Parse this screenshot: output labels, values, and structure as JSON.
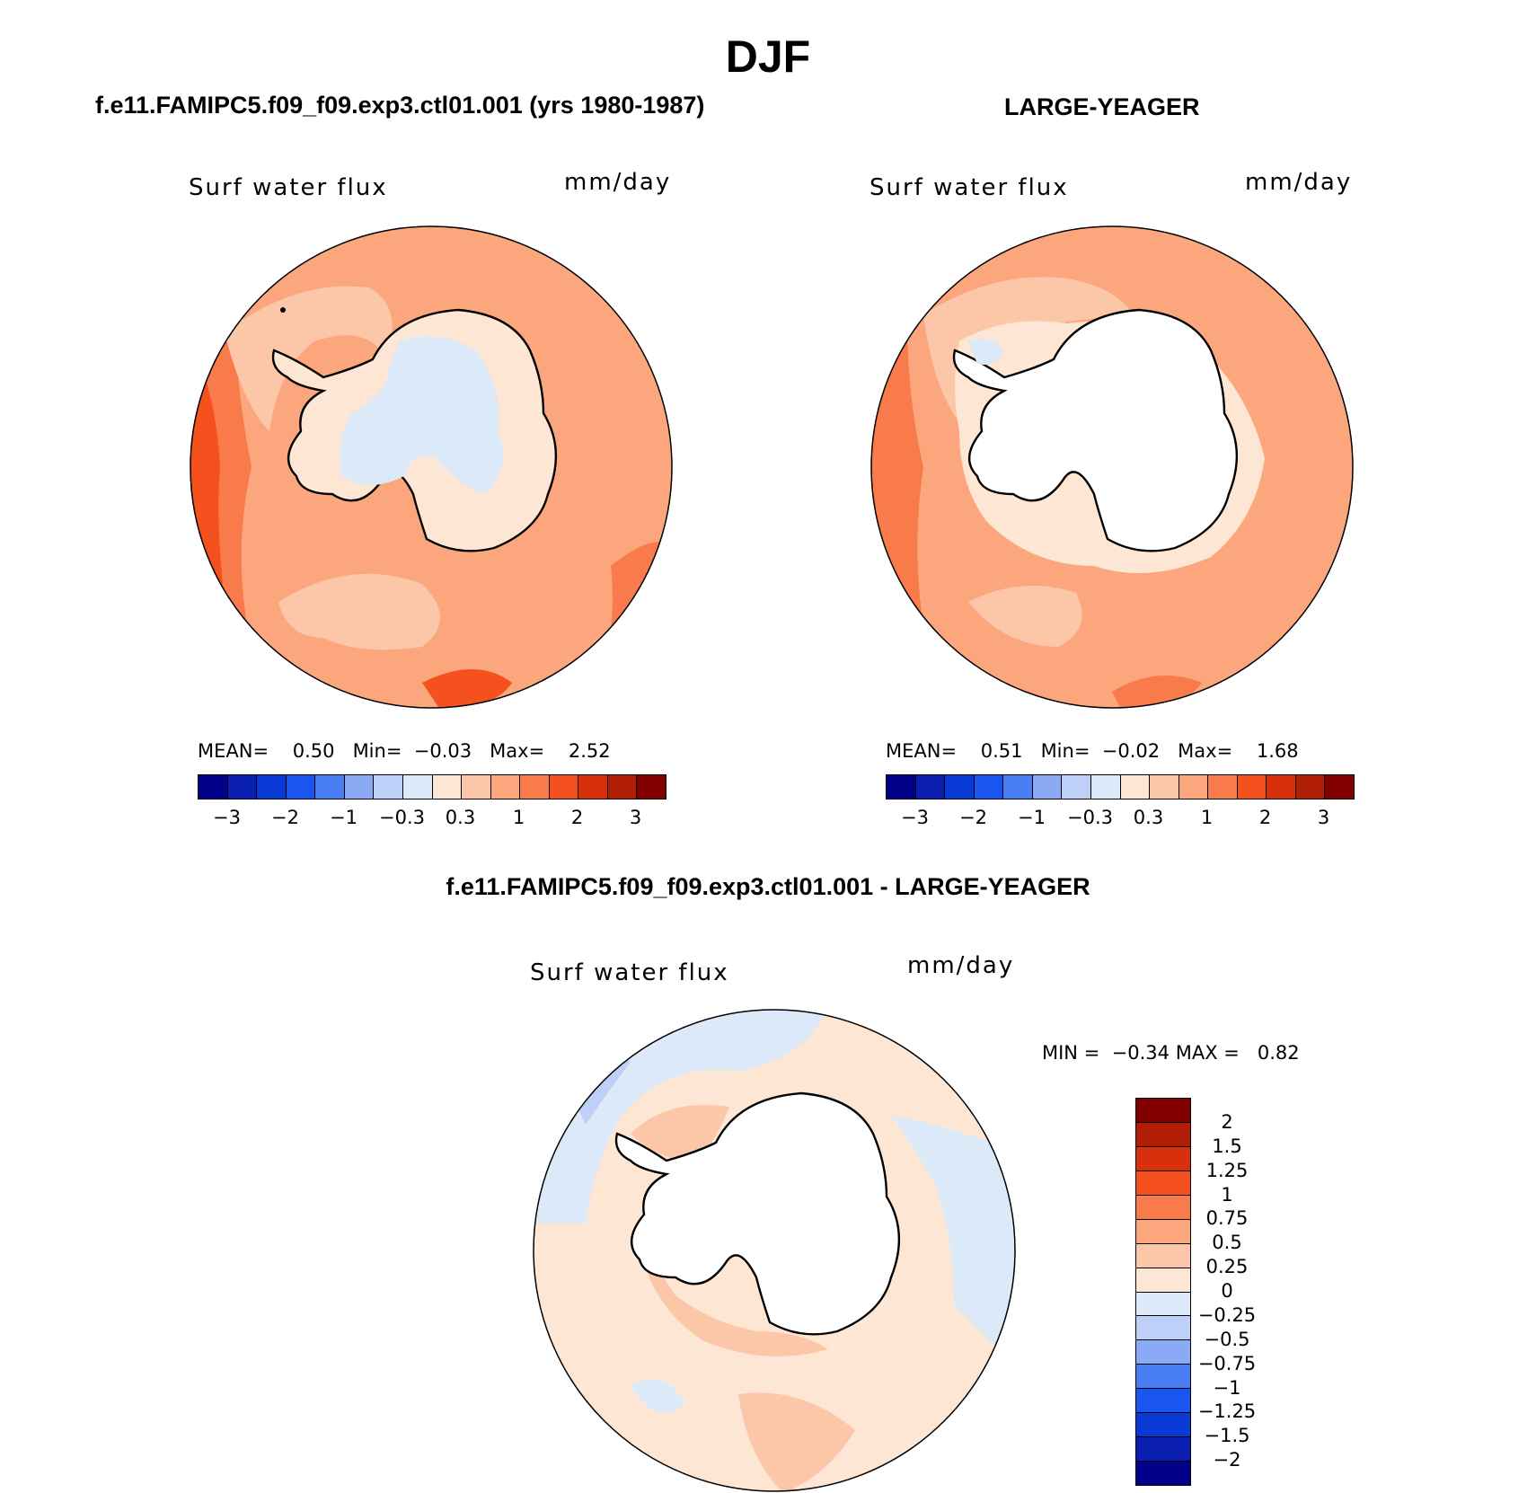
{
  "figure_title": "DJF",
  "panels": [
    {
      "title": "f.e11.FAMIPC5.f09_f09.exp3.ctl01.001 (yrs 1980-1987)",
      "variable": "Surf  water flux",
      "units": "mm/day",
      "stats": {
        "mean_label": "MEAN=",
        "mean": "0.50",
        "min_label": "Min=",
        "min": "−0.03",
        "max_label": "Max=",
        "max": "2.52"
      }
    },
    {
      "title": "LARGE-YEAGER",
      "variable": "Surf  water flux",
      "units": "mm/day",
      "stats": {
        "mean_label": "MEAN=",
        "mean": "0.51",
        "min_label": "Min=",
        "min": "−0.02",
        "max_label": "Max=",
        "max": "1.68"
      }
    },
    {
      "title": "f.e11.FAMIPC5.f09_f09.exp3.ctl01.001 - LARGE-YEAGER",
      "variable": "Surf  water flux",
      "units": "mm/day",
      "stats": {
        "min_label": "MIN =",
        "min": "−0.34",
        "max_label": "MAX =",
        "max": "0.82"
      }
    }
  ],
  "colorbar_main": {
    "colors": [
      "#00008b",
      "#0a1fb0",
      "#0a3ad6",
      "#1a55f0",
      "#4a7ef5",
      "#8aaaf5",
      "#bfd0f8",
      "#dbe9f8",
      "#fde6d4",
      "#fcc7a8",
      "#fba67d",
      "#f97a4a",
      "#f4511e",
      "#d8300c",
      "#b01f05",
      "#820000"
    ],
    "ticks": [
      "−3",
      "−2",
      "−1",
      "−0.3",
      "0.3",
      "1",
      "2",
      "3"
    ]
  },
  "colorbar_diff": {
    "colors": [
      "#820000",
      "#b01f05",
      "#d8300c",
      "#f4511e",
      "#f97a4a",
      "#fba67d",
      "#fcc7a8",
      "#fde6d4",
      "#dbe9f8",
      "#bfd0f8",
      "#8aaaf5",
      "#4a7ef5",
      "#1a55f0",
      "#0a3ad6",
      "#0a1fb0",
      "#00008b"
    ],
    "ticks": [
      "2",
      "1.5",
      "1.25",
      "1",
      "0.75",
      "0.5",
      "0.25",
      "0",
      "−0.25",
      "−0.5",
      "−0.75",
      "−1",
      "−1.25",
      "−1.5",
      "−2"
    ]
  },
  "map_colors": {
    "water": "#fba67d",
    "dark": "#f97a4a",
    "darker": "#f4511e",
    "light": "#fcc7a8",
    "pale": "#fde6d4",
    "neg": "#dbe9f8",
    "neg2": "#bfd0f8",
    "land_blank": "#ffffff"
  }
}
